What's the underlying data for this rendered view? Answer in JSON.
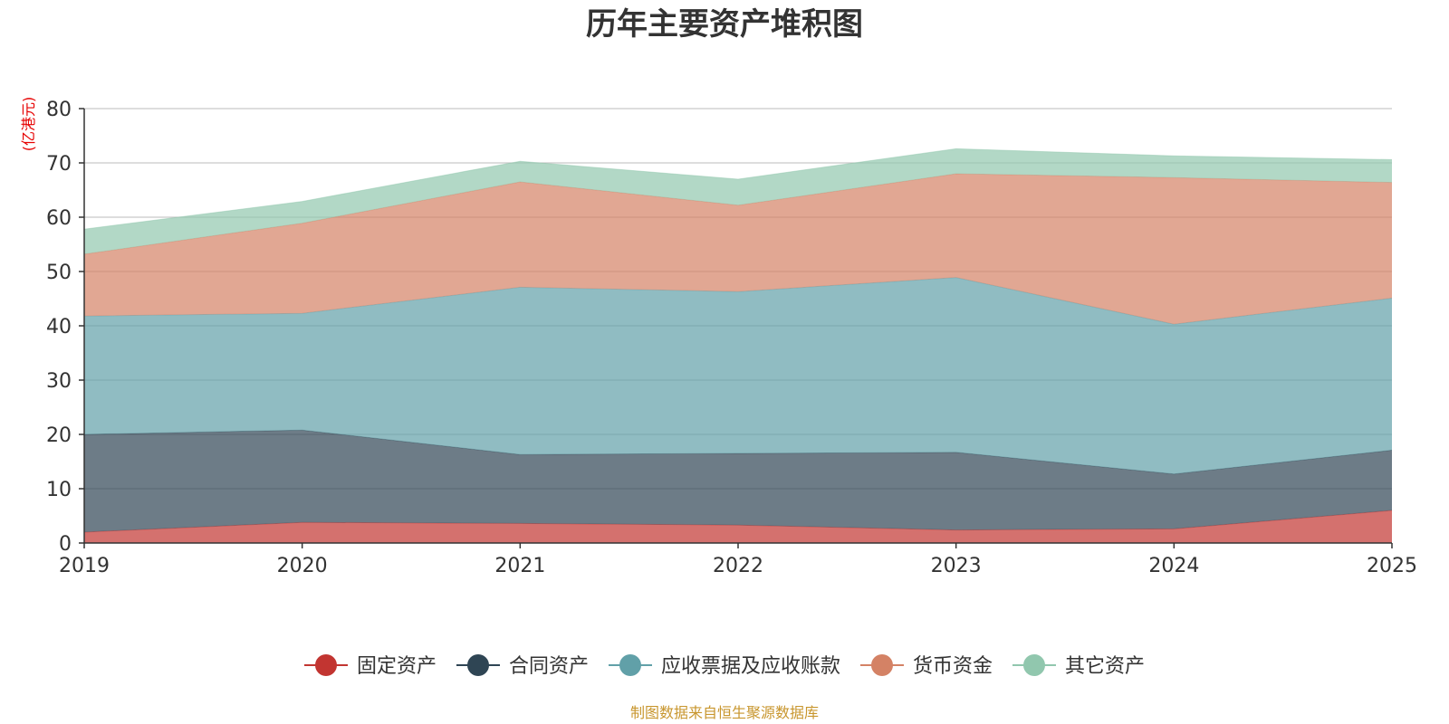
{
  "chart_data": {
    "type": "area",
    "stacked": true,
    "title": "历年主要资产堆积图",
    "unit": "(亿港元)",
    "x": [
      "2019",
      "2020",
      "2021",
      "2022",
      "2023",
      "2024",
      "2025"
    ],
    "ylim": [
      0,
      80
    ],
    "yticks": [
      0,
      10,
      20,
      30,
      40,
      50,
      60,
      70,
      80
    ],
    "grid": true,
    "legend_position": "bottom",
    "series": [
      {
        "name": "固定资产",
        "color": "#c23531",
        "values": [
          2.0,
          3.8,
          3.6,
          3.3,
          2.4,
          2.6,
          6.0
        ]
      },
      {
        "name": "合同资产",
        "color": "#2f4554",
        "values": [
          18.0,
          17.0,
          12.7,
          13.2,
          14.3,
          10.1,
          11.1
        ]
      },
      {
        "name": "应收票据及应收账款",
        "color": "#61a0a8",
        "values": [
          21.8,
          21.5,
          30.8,
          29.8,
          32.2,
          27.6,
          28.0
        ]
      },
      {
        "name": "货币资金",
        "color": "#d48265",
        "values": [
          11.4,
          16.6,
          19.4,
          15.9,
          19.1,
          27.0,
          21.3
        ]
      },
      {
        "name": "其它资产",
        "color": "#91c7ae",
        "values": [
          4.6,
          4.0,
          3.8,
          4.8,
          4.6,
          4.0,
          4.2
        ]
      }
    ],
    "unit_color": "#e60000",
    "source_color": "#c8962e",
    "source": "制图数据来自恒生聚源数据库"
  }
}
